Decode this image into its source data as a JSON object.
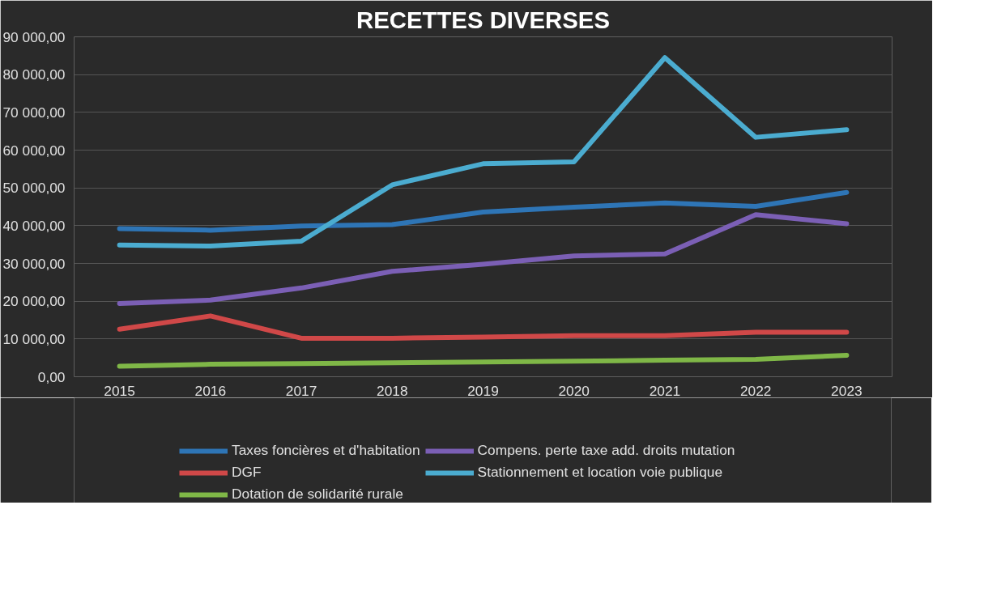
{
  "chart_data": {
    "type": "line",
    "title": "RECETTES DIVERSES",
    "categories": [
      "2015",
      "2016",
      "2017",
      "2018",
      "2019",
      "2020",
      "2021",
      "2022",
      "2023"
    ],
    "series": [
      {
        "name": "Taxes foncières et d'habitation",
        "color": "#2e75b6",
        "values": [
          39200,
          38800,
          39900,
          40300,
          43600,
          44900,
          46000,
          45100,
          48800
        ]
      },
      {
        "name": "DGF",
        "color": "#d04848",
        "values": [
          12600,
          16100,
          10200,
          10200,
          10500,
          10900,
          10900,
          11800,
          11800
        ]
      },
      {
        "name": "Dotation de solidarité rurale",
        "color": "#7fb747",
        "values": [
          2800,
          3300,
          3500,
          3700,
          3900,
          4100,
          4400,
          4600,
          5700
        ]
      },
      {
        "name": "Compens. perte taxe add. droits mutation",
        "color": "#7b5fb5",
        "values": [
          19400,
          20300,
          23500,
          27900,
          29800,
          32000,
          32500,
          42900,
          40500
        ]
      },
      {
        "name": "Stationnement et location voie publique",
        "color": "#4bacd0",
        "values": [
          34900,
          34600,
          35900,
          50800,
          56400,
          56900,
          84500,
          63400,
          65400
        ]
      }
    ],
    "ylim": [
      0,
      90000
    ],
    "yticks": [
      {
        "value": 0,
        "label": "0,00"
      },
      {
        "value": 10000,
        "label": "10 000,00"
      },
      {
        "value": 20000,
        "label": "20 000,00"
      },
      {
        "value": 30000,
        "label": "30 000,00"
      },
      {
        "value": 40000,
        "label": "40 000,00"
      },
      {
        "value": 50000,
        "label": "50 000,00"
      },
      {
        "value": 60000,
        "label": "60 000,00"
      },
      {
        "value": 70000,
        "label": "70 000,00"
      },
      {
        "value": 80000,
        "label": "80 000,00"
      },
      {
        "value": 90000,
        "label": "90 000,00"
      }
    ],
    "grid": "y",
    "legend": "bottom",
    "marker": "none",
    "line_style": "solid"
  }
}
